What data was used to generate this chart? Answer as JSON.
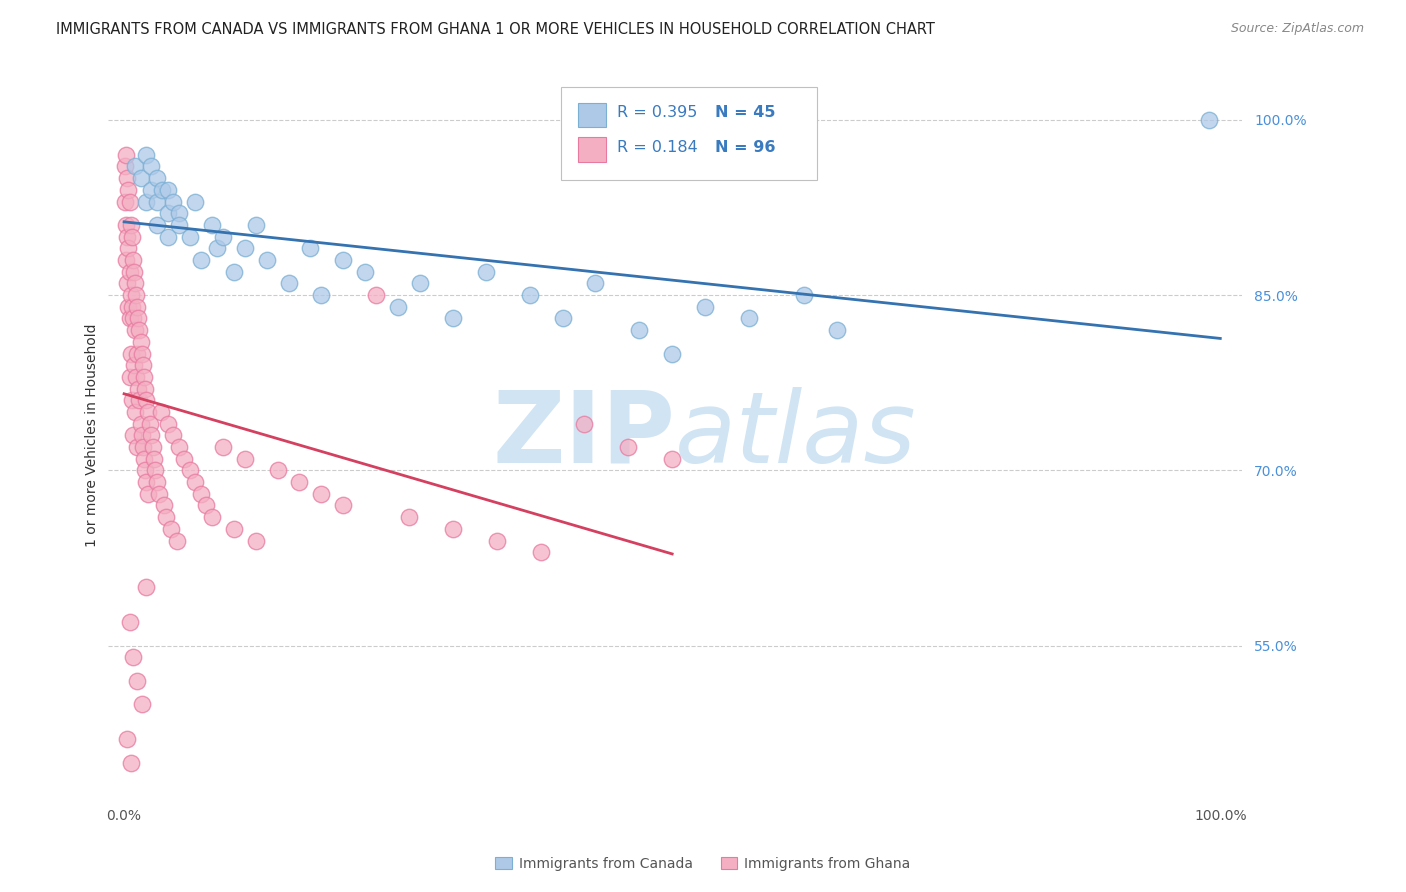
{
  "title": "IMMIGRANTS FROM CANADA VS IMMIGRANTS FROM GHANA 1 OR MORE VEHICLES IN HOUSEHOLD CORRELATION CHART",
  "source": "Source: ZipAtlas.com",
  "ylabel": "1 or more Vehicles in Household",
  "xlim": [
    -0.015,
    1.02
  ],
  "ylim": [
    0.42,
    1.04
  ],
  "xtick_vals": [
    0.0,
    1.0
  ],
  "xtick_labels": [
    "0.0%",
    "100.0%"
  ],
  "ytick_vals_right": [
    1.0,
    0.85,
    0.7,
    0.55
  ],
  "ytick_labels_right": [
    "100.0%",
    "85.0%",
    "70.0%",
    "55.0%"
  ],
  "legend_R_canada": "R = 0.395",
  "legend_N_canada": "N = 45",
  "legend_R_ghana": "R = 0.184",
  "legend_N_ghana": "N = 96",
  "legend_label_canada": "Immigrants from Canada",
  "legend_label_ghana": "Immigrants from Ghana",
  "canada_color": "#aec9e8",
  "ghana_color": "#f4afc3",
  "canada_edge_color": "#7bafd4",
  "ghana_edge_color": "#e87aa0",
  "canada_line_color": "#3572b0",
  "ghana_line_color": "#d44060",
  "watermark_zip": "ZIP",
  "watermark_atlas": "atlas",
  "watermark_color": "#d0e4f4",
  "bg_color": "#ffffff",
  "grid_color": "#cccccc",
  "tick_color": "#555555",
  "right_tick_color": "#4a90d9",
  "canada_x": [
    0.01,
    0.015,
    0.02,
    0.02,
    0.025,
    0.025,
    0.03,
    0.03,
    0.03,
    0.035,
    0.04,
    0.04,
    0.04,
    0.045,
    0.05,
    0.05,
    0.06,
    0.065,
    0.07,
    0.08,
    0.085,
    0.09,
    0.1,
    0.11,
    0.12,
    0.13,
    0.15,
    0.17,
    0.18,
    0.2,
    0.22,
    0.25,
    0.27,
    0.3,
    0.33,
    0.37,
    0.4,
    0.43,
    0.47,
    0.5,
    0.53,
    0.57,
    0.62,
    0.65,
    0.99
  ],
  "canada_y": [
    0.96,
    0.95,
    0.97,
    0.93,
    0.94,
    0.96,
    0.93,
    0.95,
    0.91,
    0.94,
    0.92,
    0.94,
    0.9,
    0.93,
    0.92,
    0.91,
    0.9,
    0.93,
    0.88,
    0.91,
    0.89,
    0.9,
    0.87,
    0.89,
    0.91,
    0.88,
    0.86,
    0.89,
    0.85,
    0.88,
    0.87,
    0.84,
    0.86,
    0.83,
    0.87,
    0.85,
    0.83,
    0.86,
    0.82,
    0.8,
    0.84,
    0.83,
    0.85,
    0.82,
    1.0
  ],
  "ghana_x": [
    0.001,
    0.001,
    0.002,
    0.002,
    0.002,
    0.003,
    0.003,
    0.003,
    0.004,
    0.004,
    0.004,
    0.005,
    0.005,
    0.005,
    0.005,
    0.006,
    0.006,
    0.006,
    0.007,
    0.007,
    0.007,
    0.008,
    0.008,
    0.008,
    0.009,
    0.009,
    0.01,
    0.01,
    0.01,
    0.011,
    0.011,
    0.012,
    0.012,
    0.012,
    0.013,
    0.013,
    0.014,
    0.014,
    0.015,
    0.015,
    0.016,
    0.016,
    0.017,
    0.017,
    0.018,
    0.018,
    0.019,
    0.019,
    0.02,
    0.02,
    0.022,
    0.022,
    0.024,
    0.025,
    0.026,
    0.027,
    0.028,
    0.03,
    0.032,
    0.034,
    0.036,
    0.038,
    0.04,
    0.043,
    0.045,
    0.048,
    0.05,
    0.055,
    0.06,
    0.065,
    0.07,
    0.075,
    0.08,
    0.09,
    0.1,
    0.11,
    0.12,
    0.14,
    0.16,
    0.18,
    0.2,
    0.23,
    0.26,
    0.3,
    0.34,
    0.38,
    0.42,
    0.46,
    0.5,
    0.02,
    0.005,
    0.008,
    0.012,
    0.016,
    0.003,
    0.006
  ],
  "ghana_y": [
    0.96,
    0.93,
    0.97,
    0.91,
    0.88,
    0.95,
    0.9,
    0.86,
    0.94,
    0.89,
    0.84,
    0.93,
    0.87,
    0.83,
    0.78,
    0.91,
    0.85,
    0.8,
    0.9,
    0.84,
    0.76,
    0.88,
    0.83,
    0.73,
    0.87,
    0.79,
    0.86,
    0.82,
    0.75,
    0.85,
    0.78,
    0.84,
    0.8,
    0.72,
    0.83,
    0.77,
    0.82,
    0.76,
    0.81,
    0.74,
    0.8,
    0.73,
    0.79,
    0.72,
    0.78,
    0.71,
    0.77,
    0.7,
    0.76,
    0.69,
    0.75,
    0.68,
    0.74,
    0.73,
    0.72,
    0.71,
    0.7,
    0.69,
    0.68,
    0.75,
    0.67,
    0.66,
    0.74,
    0.65,
    0.73,
    0.64,
    0.72,
    0.71,
    0.7,
    0.69,
    0.68,
    0.67,
    0.66,
    0.72,
    0.65,
    0.71,
    0.64,
    0.7,
    0.69,
    0.68,
    0.67,
    0.85,
    0.66,
    0.65,
    0.64,
    0.63,
    0.74,
    0.72,
    0.71,
    0.6,
    0.57,
    0.54,
    0.52,
    0.5,
    0.47,
    0.45
  ]
}
